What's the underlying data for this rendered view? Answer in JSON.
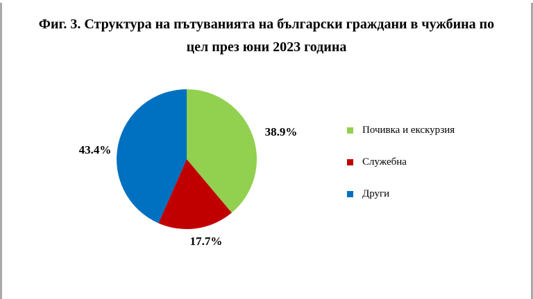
{
  "page": {
    "title_lines": [
      "Фиг. 3. Структура на пътуванията на български граждани в чужбина по",
      "цел през юни 2023 година"
    ]
  },
  "chart_data": {
    "type": "pie",
    "title": "Фиг. 3. Структура на пътуванията на български граждани в чужбина по цел през юни 2023 година",
    "categories": [
      "Почивка и екскурзия",
      "Служебна",
      "Други"
    ],
    "values": [
      38.9,
      17.7,
      43.4
    ],
    "unit": "%",
    "slice_labels": [
      "38.9%",
      "17.7%",
      "43.4%"
    ],
    "colors": [
      "#92D050",
      "#C00000",
      "#0070C0"
    ],
    "start_angle_deg": 0,
    "direction": "clockwise",
    "legend_position": "right"
  },
  "legend": {
    "items": [
      {
        "label": "Почивка и екскурзия",
        "color": "#92D050"
      },
      {
        "label": "Служебна",
        "color": "#C00000"
      },
      {
        "label": "Други",
        "color": "#0070C0"
      }
    ]
  }
}
